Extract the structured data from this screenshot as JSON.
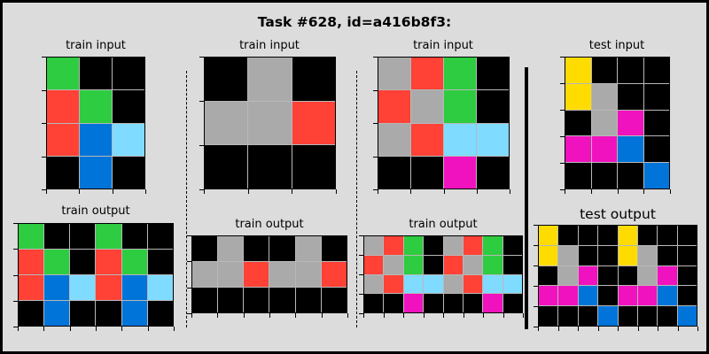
{
  "title": "Task #628, id=a416b8f3:",
  "palette": {
    "0": "#000000",
    "1": "#0074d9",
    "2": "#ff4136",
    "3": "#2ecc40",
    "4": "#ffdc00",
    "5": "#aaaaaa",
    "6": "#f012be",
    "7": "#ff851b",
    "8": "#7fdbff",
    "9": "#870c25"
  },
  "panels": [
    {
      "id": "ex1-input",
      "label": "train input",
      "grid": [
        [
          3,
          0,
          0
        ],
        [
          2,
          3,
          0
        ],
        [
          2,
          1,
          8
        ],
        [
          0,
          1,
          0
        ]
      ]
    },
    {
      "id": "ex1-output",
      "label": "train output",
      "grid": [
        [
          3,
          0,
          0,
          3,
          0,
          0
        ],
        [
          2,
          3,
          0,
          2,
          3,
          0
        ],
        [
          2,
          1,
          8,
          2,
          1,
          8
        ],
        [
          0,
          1,
          0,
          0,
          1,
          0
        ]
      ]
    },
    {
      "id": "ex2-input",
      "label": "train input",
      "grid": [
        [
          0,
          5,
          0
        ],
        [
          5,
          5,
          2
        ],
        [
          0,
          0,
          0
        ]
      ]
    },
    {
      "id": "ex2-output",
      "label": "train output",
      "grid": [
        [
          0,
          5,
          0,
          0,
          5,
          0
        ],
        [
          5,
          5,
          2,
          5,
          5,
          2
        ],
        [
          0,
          0,
          0,
          0,
          0,
          0
        ]
      ]
    },
    {
      "id": "ex3-input",
      "label": "train input",
      "grid": [
        [
          5,
          2,
          3,
          0
        ],
        [
          2,
          5,
          3,
          0
        ],
        [
          5,
          2,
          8,
          8
        ],
        [
          0,
          0,
          6,
          0
        ]
      ]
    },
    {
      "id": "ex3-output",
      "label": "train output",
      "grid": [
        [
          5,
          2,
          3,
          0,
          5,
          2,
          3,
          0
        ],
        [
          2,
          5,
          3,
          0,
          2,
          5,
          3,
          0
        ],
        [
          5,
          2,
          8,
          8,
          5,
          2,
          8,
          8
        ],
        [
          0,
          0,
          6,
          0,
          0,
          0,
          6,
          0
        ]
      ]
    },
    {
      "id": "test-input",
      "label": "test input",
      "grid": [
        [
          4,
          0,
          0,
          0
        ],
        [
          4,
          5,
          0,
          0
        ],
        [
          0,
          5,
          6,
          0
        ],
        [
          6,
          6,
          1,
          0
        ],
        [
          0,
          0,
          0,
          1
        ]
      ]
    },
    {
      "id": "test-output",
      "label": "test output",
      "grid": [
        [
          4,
          0,
          0,
          0,
          4,
          0,
          0,
          0
        ],
        [
          4,
          5,
          0,
          0,
          4,
          5,
          0,
          0
        ],
        [
          0,
          5,
          6,
          0,
          0,
          5,
          6,
          0
        ],
        [
          6,
          6,
          1,
          0,
          6,
          6,
          1,
          0
        ],
        [
          0,
          0,
          0,
          1,
          0,
          0,
          0,
          1
        ]
      ]
    }
  ]
}
